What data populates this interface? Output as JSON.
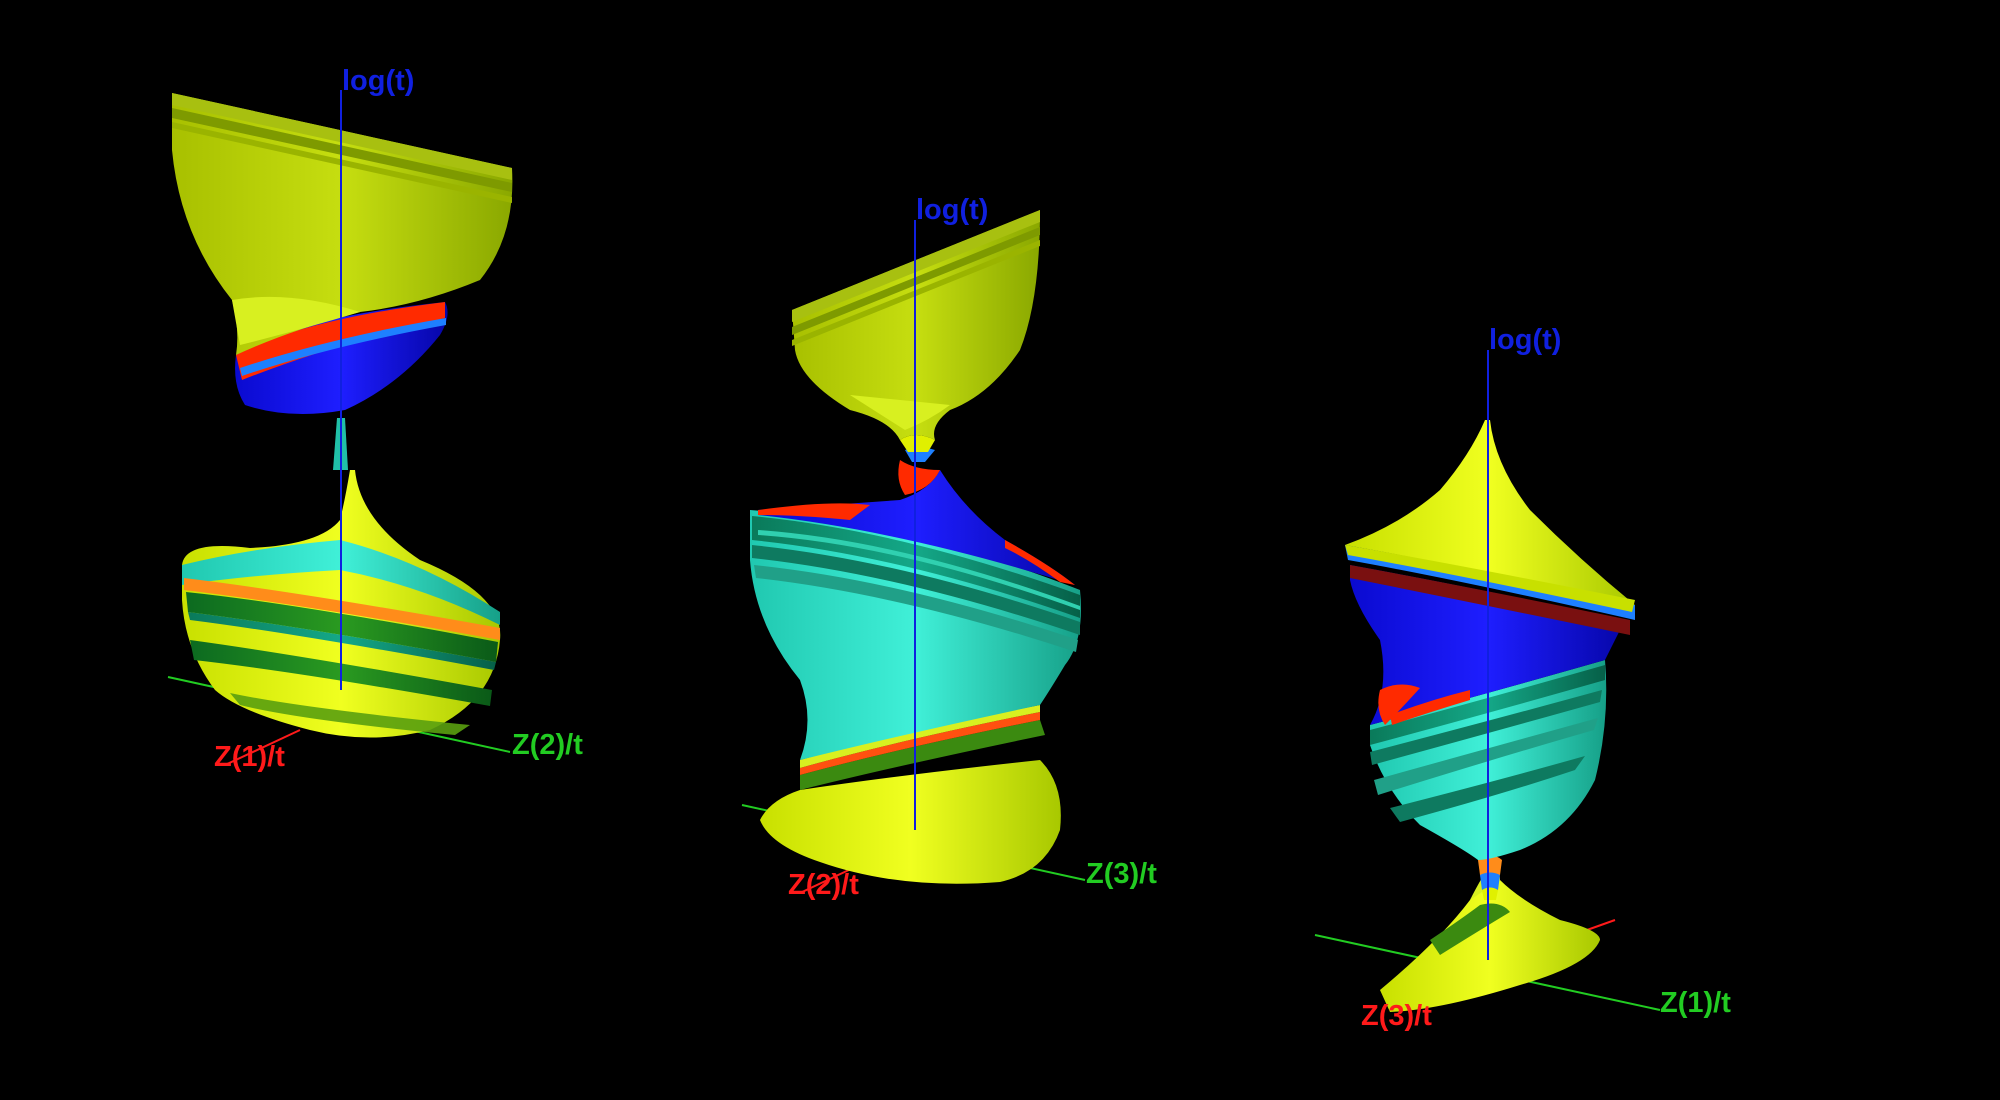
{
  "plots": [
    {
      "id": "plot-1",
      "axis_vertical_label": "log(t)",
      "axis_red_label": "Z(1)/t",
      "axis_green_label": "Z(2)/t"
    },
    {
      "id": "plot-2",
      "axis_vertical_label": "log(t)",
      "axis_red_label": "Z(2)/t",
      "axis_green_label": "Z(3)/t"
    },
    {
      "id": "plot-3",
      "axis_vertical_label": "log(t)",
      "axis_red_label": "Z(3)/t",
      "axis_green_label": "Z(1)/t"
    }
  ],
  "colors": {
    "background": "#000000",
    "axis_vertical": "#1020e0",
    "axis_red": "#ff1a1a",
    "axis_green": "#22cc22",
    "surface_yellow": "#e0f000",
    "surface_olive": "#9fbf00",
    "surface_cyan": "#30e0c8",
    "surface_teal": "#0a8a66",
    "surface_blue": "#1010e0",
    "surface_red": "#ff2a00",
    "surface_orange": "#ff8c1a"
  }
}
